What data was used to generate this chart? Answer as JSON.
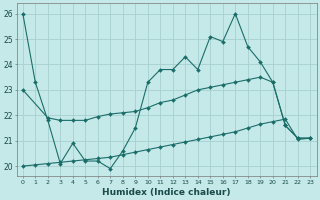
{
  "title": "",
  "xlabel": "Humidex (Indice chaleur)",
  "background_color": "#c5e8e8",
  "grid_color": "#a8d0d0",
  "line_color": "#1a6e6a",
  "xlim": [
    -0.5,
    23.5
  ],
  "ylim": [
    19.6,
    26.4
  ],
  "yticks": [
    20,
    21,
    22,
    23,
    24,
    25,
    26
  ],
  "xticks": [
    0,
    1,
    2,
    3,
    4,
    5,
    6,
    7,
    8,
    9,
    10,
    11,
    12,
    13,
    14,
    15,
    16,
    17,
    18,
    19,
    20,
    21,
    22,
    23
  ],
  "line1_x": [
    0,
    1,
    2,
    3,
    4,
    5,
    6,
    7,
    8,
    9,
    10,
    11,
    12,
    13,
    14,
    15,
    16,
    17,
    18,
    19,
    20,
    21,
    22,
    23
  ],
  "line1_y": [
    26.0,
    23.3,
    21.8,
    20.1,
    20.9,
    20.2,
    20.2,
    19.9,
    20.6,
    21.5,
    23.3,
    23.8,
    23.8,
    24.3,
    23.8,
    25.1,
    24.9,
    26.0,
    24.7,
    24.1,
    23.3,
    21.6,
    21.1,
    21.1
  ],
  "line2_x": [
    0,
    2,
    3,
    4,
    5,
    6,
    7,
    8,
    9,
    10,
    11,
    12,
    13,
    14,
    15,
    16,
    17,
    18,
    19,
    20,
    21,
    22,
    23
  ],
  "line2_y": [
    23.0,
    21.9,
    21.8,
    21.8,
    21.8,
    21.95,
    22.05,
    22.1,
    22.15,
    22.3,
    22.5,
    22.6,
    22.8,
    23.0,
    23.1,
    23.2,
    23.3,
    23.4,
    23.5,
    23.3,
    21.6,
    21.1,
    21.1
  ],
  "line3_x": [
    0,
    1,
    2,
    3,
    4,
    5,
    6,
    7,
    8,
    9,
    10,
    11,
    12,
    13,
    14,
    15,
    16,
    17,
    18,
    19,
    20,
    21,
    22,
    23
  ],
  "line3_y": [
    20.0,
    20.05,
    20.1,
    20.15,
    20.2,
    20.25,
    20.3,
    20.35,
    20.45,
    20.55,
    20.65,
    20.75,
    20.85,
    20.95,
    21.05,
    21.15,
    21.25,
    21.35,
    21.5,
    21.65,
    21.75,
    21.85,
    21.05,
    21.1
  ]
}
